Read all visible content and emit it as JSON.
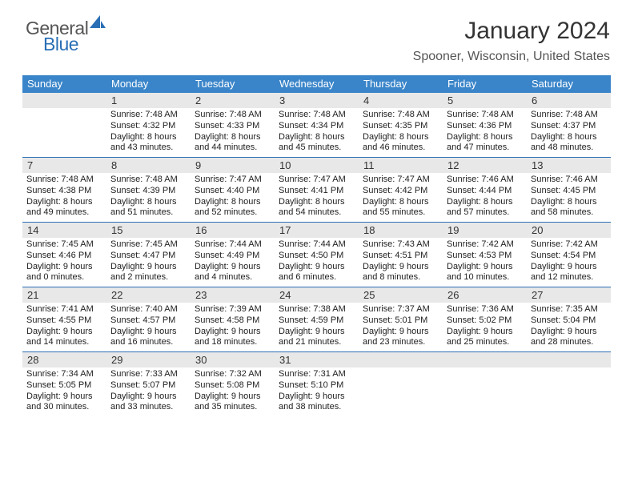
{
  "logo": {
    "part1": "General",
    "part2": "Blue"
  },
  "title": "January 2024",
  "subtitle": "Spooner, Wisconsin, United States",
  "colors": {
    "header_bg": "#3a85c9",
    "week_border": "#2a6fb5",
    "daynum_bg": "#e8e8e8",
    "text": "#222222",
    "logo_blue": "#2a6fb5"
  },
  "days_of_week": [
    "Sunday",
    "Monday",
    "Tuesday",
    "Wednesday",
    "Thursday",
    "Friday",
    "Saturday"
  ],
  "weeks": [
    [
      {
        "n": "",
        "sunrise": "",
        "sunset": "",
        "day": "",
        "day2": ""
      },
      {
        "n": "1",
        "sunrise": "Sunrise: 7:48 AM",
        "sunset": "Sunset: 4:32 PM",
        "day": "Daylight: 8 hours",
        "day2": "and 43 minutes."
      },
      {
        "n": "2",
        "sunrise": "Sunrise: 7:48 AM",
        "sunset": "Sunset: 4:33 PM",
        "day": "Daylight: 8 hours",
        "day2": "and 44 minutes."
      },
      {
        "n": "3",
        "sunrise": "Sunrise: 7:48 AM",
        "sunset": "Sunset: 4:34 PM",
        "day": "Daylight: 8 hours",
        "day2": "and 45 minutes."
      },
      {
        "n": "4",
        "sunrise": "Sunrise: 7:48 AM",
        "sunset": "Sunset: 4:35 PM",
        "day": "Daylight: 8 hours",
        "day2": "and 46 minutes."
      },
      {
        "n": "5",
        "sunrise": "Sunrise: 7:48 AM",
        "sunset": "Sunset: 4:36 PM",
        "day": "Daylight: 8 hours",
        "day2": "and 47 minutes."
      },
      {
        "n": "6",
        "sunrise": "Sunrise: 7:48 AM",
        "sunset": "Sunset: 4:37 PM",
        "day": "Daylight: 8 hours",
        "day2": "and 48 minutes."
      }
    ],
    [
      {
        "n": "7",
        "sunrise": "Sunrise: 7:48 AM",
        "sunset": "Sunset: 4:38 PM",
        "day": "Daylight: 8 hours",
        "day2": "and 49 minutes."
      },
      {
        "n": "8",
        "sunrise": "Sunrise: 7:48 AM",
        "sunset": "Sunset: 4:39 PM",
        "day": "Daylight: 8 hours",
        "day2": "and 51 minutes."
      },
      {
        "n": "9",
        "sunrise": "Sunrise: 7:47 AM",
        "sunset": "Sunset: 4:40 PM",
        "day": "Daylight: 8 hours",
        "day2": "and 52 minutes."
      },
      {
        "n": "10",
        "sunrise": "Sunrise: 7:47 AM",
        "sunset": "Sunset: 4:41 PM",
        "day": "Daylight: 8 hours",
        "day2": "and 54 minutes."
      },
      {
        "n": "11",
        "sunrise": "Sunrise: 7:47 AM",
        "sunset": "Sunset: 4:42 PM",
        "day": "Daylight: 8 hours",
        "day2": "and 55 minutes."
      },
      {
        "n": "12",
        "sunrise": "Sunrise: 7:46 AM",
        "sunset": "Sunset: 4:44 PM",
        "day": "Daylight: 8 hours",
        "day2": "and 57 minutes."
      },
      {
        "n": "13",
        "sunrise": "Sunrise: 7:46 AM",
        "sunset": "Sunset: 4:45 PM",
        "day": "Daylight: 8 hours",
        "day2": "and 58 minutes."
      }
    ],
    [
      {
        "n": "14",
        "sunrise": "Sunrise: 7:45 AM",
        "sunset": "Sunset: 4:46 PM",
        "day": "Daylight: 9 hours",
        "day2": "and 0 minutes."
      },
      {
        "n": "15",
        "sunrise": "Sunrise: 7:45 AM",
        "sunset": "Sunset: 4:47 PM",
        "day": "Daylight: 9 hours",
        "day2": "and 2 minutes."
      },
      {
        "n": "16",
        "sunrise": "Sunrise: 7:44 AM",
        "sunset": "Sunset: 4:49 PM",
        "day": "Daylight: 9 hours",
        "day2": "and 4 minutes."
      },
      {
        "n": "17",
        "sunrise": "Sunrise: 7:44 AM",
        "sunset": "Sunset: 4:50 PM",
        "day": "Daylight: 9 hours",
        "day2": "and 6 minutes."
      },
      {
        "n": "18",
        "sunrise": "Sunrise: 7:43 AM",
        "sunset": "Sunset: 4:51 PM",
        "day": "Daylight: 9 hours",
        "day2": "and 8 minutes."
      },
      {
        "n": "19",
        "sunrise": "Sunrise: 7:42 AM",
        "sunset": "Sunset: 4:53 PM",
        "day": "Daylight: 9 hours",
        "day2": "and 10 minutes."
      },
      {
        "n": "20",
        "sunrise": "Sunrise: 7:42 AM",
        "sunset": "Sunset: 4:54 PM",
        "day": "Daylight: 9 hours",
        "day2": "and 12 minutes."
      }
    ],
    [
      {
        "n": "21",
        "sunrise": "Sunrise: 7:41 AM",
        "sunset": "Sunset: 4:55 PM",
        "day": "Daylight: 9 hours",
        "day2": "and 14 minutes."
      },
      {
        "n": "22",
        "sunrise": "Sunrise: 7:40 AM",
        "sunset": "Sunset: 4:57 PM",
        "day": "Daylight: 9 hours",
        "day2": "and 16 minutes."
      },
      {
        "n": "23",
        "sunrise": "Sunrise: 7:39 AM",
        "sunset": "Sunset: 4:58 PM",
        "day": "Daylight: 9 hours",
        "day2": "and 18 minutes."
      },
      {
        "n": "24",
        "sunrise": "Sunrise: 7:38 AM",
        "sunset": "Sunset: 4:59 PM",
        "day": "Daylight: 9 hours",
        "day2": "and 21 minutes."
      },
      {
        "n": "25",
        "sunrise": "Sunrise: 7:37 AM",
        "sunset": "Sunset: 5:01 PM",
        "day": "Daylight: 9 hours",
        "day2": "and 23 minutes."
      },
      {
        "n": "26",
        "sunrise": "Sunrise: 7:36 AM",
        "sunset": "Sunset: 5:02 PM",
        "day": "Daylight: 9 hours",
        "day2": "and 25 minutes."
      },
      {
        "n": "27",
        "sunrise": "Sunrise: 7:35 AM",
        "sunset": "Sunset: 5:04 PM",
        "day": "Daylight: 9 hours",
        "day2": "and 28 minutes."
      }
    ],
    [
      {
        "n": "28",
        "sunrise": "Sunrise: 7:34 AM",
        "sunset": "Sunset: 5:05 PM",
        "day": "Daylight: 9 hours",
        "day2": "and 30 minutes."
      },
      {
        "n": "29",
        "sunrise": "Sunrise: 7:33 AM",
        "sunset": "Sunset: 5:07 PM",
        "day": "Daylight: 9 hours",
        "day2": "and 33 minutes."
      },
      {
        "n": "30",
        "sunrise": "Sunrise: 7:32 AM",
        "sunset": "Sunset: 5:08 PM",
        "day": "Daylight: 9 hours",
        "day2": "and 35 minutes."
      },
      {
        "n": "31",
        "sunrise": "Sunrise: 7:31 AM",
        "sunset": "Sunset: 5:10 PM",
        "day": "Daylight: 9 hours",
        "day2": "and 38 minutes."
      },
      {
        "n": "",
        "sunrise": "",
        "sunset": "",
        "day": "",
        "day2": ""
      },
      {
        "n": "",
        "sunrise": "",
        "sunset": "",
        "day": "",
        "day2": ""
      },
      {
        "n": "",
        "sunrise": "",
        "sunset": "",
        "day": "",
        "day2": ""
      }
    ]
  ]
}
